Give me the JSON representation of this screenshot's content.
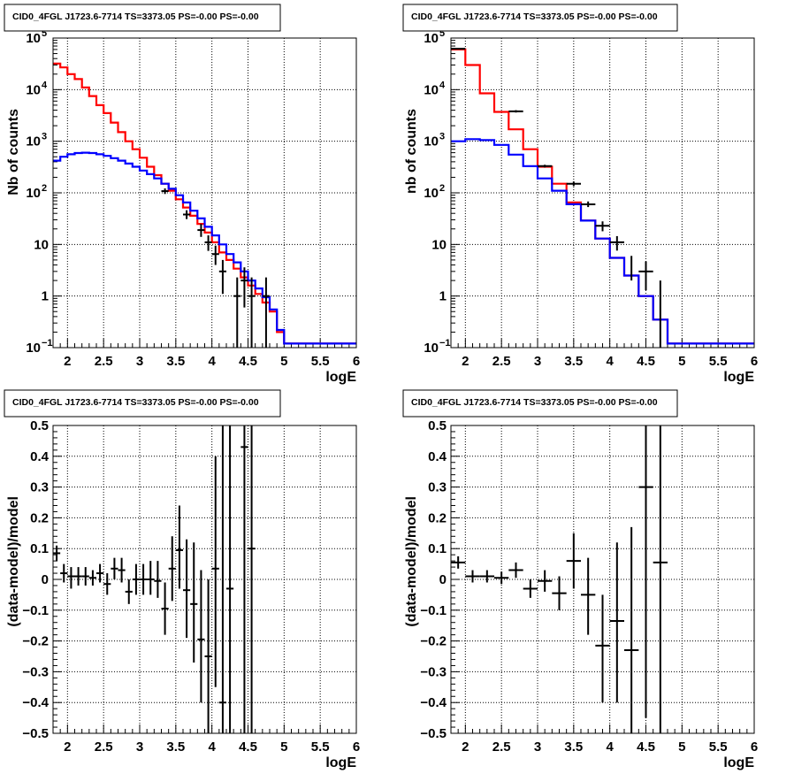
{
  "chart_data": [
    {
      "type": "line",
      "title": "CID0_4FGL J1723.6-7714 TS=3373.05 PS=-0.00 PS=-0.00",
      "xlabel": "logE",
      "ylabel": "Nb of counts",
      "xlim": [
        1.8,
        6.0
      ],
      "ylim": [
        0.1,
        100000
      ],
      "yscale": "log",
      "grid": true,
      "x_ticks": [
        2,
        2.5,
        3,
        3.5,
        4,
        4.5,
        5,
        5.5,
        6
      ],
      "x_tick_labels": [
        "2",
        "2.5",
        "3",
        "3.5",
        "4",
        "4.5",
        "5",
        "5.5",
        "6"
      ],
      "y_ticks": [
        0.1,
        1,
        10,
        100,
        1000,
        10000,
        100000
      ],
      "y_tick_labels": [
        {
          "base": "10",
          "exp": "−1"
        },
        {
          "base": "1",
          "exp": ""
        },
        {
          "base": "10",
          "exp": ""
        },
        {
          "base": "10",
          "exp": "2"
        },
        {
          "base": "10",
          "exp": "3"
        },
        {
          "base": "10",
          "exp": "4"
        },
        {
          "base": "10",
          "exp": "5"
        }
      ],
      "bin_edges": [
        1.8,
        1.9,
        2.0,
        2.1,
        2.2,
        2.3,
        2.4,
        2.5,
        2.6,
        2.7,
        2.8,
        2.9,
        3.0,
        3.1,
        3.2,
        3.3,
        3.4,
        3.5,
        3.6,
        3.7,
        3.8,
        3.9,
        4.0,
        4.1,
        4.2,
        4.3,
        4.4,
        4.5,
        4.6,
        4.7,
        4.8,
        4.9,
        5.0,
        5.1,
        5.2,
        5.3,
        5.4,
        5.5,
        5.6,
        5.7,
        5.8,
        5.9,
        6.0
      ],
      "series": [
        {
          "color": "#ff0000",
          "values": [
            32000,
            27000,
            20000,
            16000,
            11000,
            7500,
            5000,
            3500,
            2300,
            1500,
            1000,
            700,
            480,
            320,
            220,
            150,
            110,
            75,
            52,
            36,
            25,
            17,
            11,
            7,
            5,
            3.4,
            2.3,
            1.6,
            1.1,
            0.75,
            0.5,
            0.2,
            0.12,
            0.12,
            0.12,
            0.12,
            0.12,
            0.12,
            0.12,
            0.12,
            0.12,
            0.12
          ]
        },
        {
          "color": "#0000ff",
          "values": [
            420,
            500,
            560,
            590,
            600,
            590,
            560,
            520,
            470,
            420,
            370,
            320,
            270,
            230,
            190,
            150,
            120,
            90,
            65,
            45,
            32,
            22,
            15,
            10,
            6.5,
            4.5,
            3,
            2,
            1.4,
            0.95,
            0.55,
            0.22,
            0.12,
            0.12,
            0.12,
            0.12,
            0.12,
            0.12,
            0.12,
            0.12,
            0.12,
            0.12
          ]
        }
      ],
      "data_points": [
        {
          "x": 3.35,
          "y": 108,
          "ylo": 95,
          "yhi": 122,
          "xerr": 0.05
        },
        {
          "x": 3.65,
          "y": 38,
          "ylo": 31,
          "yhi": 46,
          "xerr": 0.05
        },
        {
          "x": 3.85,
          "y": 19,
          "ylo": 14,
          "yhi": 25,
          "xerr": 0.05
        },
        {
          "x": 3.95,
          "y": 11,
          "ylo": 7.5,
          "yhi": 15,
          "xerr": 0.05
        },
        {
          "x": 4.05,
          "y": 6.5,
          "ylo": 4,
          "yhi": 9.5,
          "xerr": 0.05
        },
        {
          "x": 4.15,
          "y": 3,
          "ylo": 1.1,
          "yhi": 5,
          "xerr": 0.05
        },
        {
          "x": 4.35,
          "y": 1,
          "ylo": 0.1,
          "yhi": 2.3,
          "xerr": 0.05
        },
        {
          "x": 4.45,
          "y": 2,
          "ylo": 0.6,
          "yhi": 3.6,
          "xerr": 0.05
        },
        {
          "x": 4.55,
          "y": 1,
          "ylo": 0.1,
          "yhi": 2.3,
          "xerr": 0.05
        },
        {
          "x": 4.75,
          "y": 1,
          "ylo": 0.1,
          "yhi": 2.3,
          "xerr": 0.05
        }
      ]
    },
    {
      "type": "line",
      "title": "CID0_4FGL J1723.6-7714 TS=3373.05 PS=-0.00 PS=-0.00",
      "xlabel": "logE",
      "ylabel": "nb of counts",
      "xlim": [
        1.8,
        6.0
      ],
      "ylim": [
        0.1,
        100000
      ],
      "yscale": "log",
      "grid": true,
      "x_ticks": [
        2,
        2.5,
        3,
        3.5,
        4,
        4.5,
        5,
        5.5,
        6
      ],
      "x_tick_labels": [
        "2",
        "2.5",
        "3",
        "3.5",
        "4",
        "4.5",
        "5",
        "5.5",
        "6"
      ],
      "y_ticks": [
        0.1,
        1,
        10,
        100,
        1000,
        10000,
        100000
      ],
      "y_tick_labels": [
        {
          "base": "10",
          "exp": "−1"
        },
        {
          "base": "1",
          "exp": ""
        },
        {
          "base": "10",
          "exp": ""
        },
        {
          "base": "10",
          "exp": "2"
        },
        {
          "base": "10",
          "exp": "3"
        },
        {
          "base": "10",
          "exp": "4"
        },
        {
          "base": "10",
          "exp": "5"
        }
      ],
      "bin_edges": [
        1.8,
        2.0,
        2.2,
        2.4,
        2.6,
        2.8,
        3.0,
        3.2,
        3.4,
        3.6,
        3.8,
        4.0,
        4.2,
        4.4,
        4.6,
        4.8,
        5.0,
        5.2,
        5.4,
        5.6,
        5.8,
        6.0
      ],
      "series": [
        {
          "color": "#ff0000",
          "values": [
            60000,
            30000,
            8500,
            3700,
            1700,
            700,
            320,
            150,
            65,
            29,
            13,
            5.5,
            2.5,
            1,
            0.35,
            0.12,
            0.12,
            0.12,
            0.12,
            0.12,
            0.12
          ]
        },
        {
          "color": "#0000ff",
          "values": [
            1000,
            1100,
            1050,
            850,
            550,
            330,
            190,
            110,
            60,
            29,
            13,
            5.5,
            2.5,
            1,
            0.35,
            0.12,
            0.12,
            0.12,
            0.12,
            0.12,
            0.12
          ]
        }
      ],
      "data_points": [
        {
          "x": 1.9,
          "y": 62000,
          "ylo": 61000,
          "yhi": 63000,
          "xerr": 0.1
        },
        {
          "x": 2.7,
          "y": 3800,
          "ylo": 3600,
          "yhi": 4000,
          "xerr": 0.1
        },
        {
          "x": 3.1,
          "y": 330,
          "ylo": 310,
          "yhi": 350,
          "xerr": 0.1
        },
        {
          "x": 3.5,
          "y": 150,
          "ylo": 135,
          "yhi": 165,
          "xerr": 0.1
        },
        {
          "x": 3.7,
          "y": 60,
          "ylo": 53,
          "yhi": 68,
          "xerr": 0.1
        },
        {
          "x": 3.9,
          "y": 23,
          "ylo": 18,
          "yhi": 28,
          "xerr": 0.1
        },
        {
          "x": 4.1,
          "y": 11,
          "ylo": 7.6,
          "yhi": 14.5,
          "xerr": 0.1
        },
        {
          "x": 4.3,
          "y": 4,
          "ylo": 2,
          "yhi": 6
        },
        {
          "x": 4.5,
          "y": 3,
          "ylo": 1.3,
          "yhi": 4.7,
          "xerr": 0.1
        },
        {
          "x": 4.7,
          "y": 1,
          "ylo": 0.1,
          "yhi": 2
        }
      ]
    },
    {
      "type": "scatter",
      "title": "CID0_4FGL J1723.6-7714 TS=3373.05 PS=-0.00 PS=-0.00",
      "xlabel": "logE",
      "ylabel": "(data-model)/model",
      "xlim": [
        1.8,
        6.0
      ],
      "ylim": [
        -0.5,
        0.5
      ],
      "grid": true,
      "x_ticks": [
        2,
        2.5,
        3,
        3.5,
        4,
        4.5,
        5,
        5.5,
        6
      ],
      "x_tick_labels": [
        "2",
        "2.5",
        "3",
        "3.5",
        "4",
        "4.5",
        "5",
        "5.5",
        "6"
      ],
      "y_ticks": [
        -0.5,
        -0.4,
        -0.3,
        -0.2,
        -0.1,
        0,
        0.1,
        0.2,
        0.3,
        0.4,
        0.5
      ],
      "y_tick_labels": [
        "−0.5",
        "−0.4",
        "−0.3",
        "−0.2",
        "−0.1",
        "0",
        "0.1",
        "0.2",
        "0.3",
        "0.4",
        "0.5"
      ],
      "data_points": [
        {
          "x": 1.85,
          "y": 0.085,
          "ylo": 0.06,
          "yhi": 0.11,
          "xerr": 0.05
        },
        {
          "x": 1.95,
          "y": 0.02,
          "ylo": -0.01,
          "yhi": 0.05,
          "xerr": 0.05
        },
        {
          "x": 2.05,
          "y": 0.01,
          "ylo": -0.03,
          "yhi": 0.04,
          "xerr": 0.05
        },
        {
          "x": 2.15,
          "y": 0.01,
          "ylo": -0.02,
          "yhi": 0.04,
          "xerr": 0.05
        },
        {
          "x": 2.25,
          "y": 0.01,
          "ylo": -0.02,
          "yhi": 0.04,
          "xerr": 0.05
        },
        {
          "x": 2.35,
          "y": 0.005,
          "ylo": -0.02,
          "yhi": 0.03,
          "xerr": 0.05
        },
        {
          "x": 2.45,
          "y": 0.02,
          "ylo": -0.01,
          "yhi": 0.05,
          "xerr": 0.05
        },
        {
          "x": 2.55,
          "y": -0.015,
          "ylo": -0.05,
          "yhi": 0.02,
          "xerr": 0.05
        },
        {
          "x": 2.65,
          "y": 0.035,
          "ylo": 0.0,
          "yhi": 0.07,
          "xerr": 0.05
        },
        {
          "x": 2.75,
          "y": 0.03,
          "ylo": -0.01,
          "yhi": 0.07,
          "xerr": 0.05
        },
        {
          "x": 2.85,
          "y": -0.04,
          "ylo": -0.08,
          "yhi": 0.0,
          "xerr": 0.05
        },
        {
          "x": 2.95,
          "y": 0.0,
          "ylo": -0.05,
          "yhi": 0.05,
          "xerr": 0.05
        },
        {
          "x": 3.05,
          "y": 0.0,
          "ylo": -0.05,
          "yhi": 0.05,
          "xerr": 0.05
        },
        {
          "x": 3.15,
          "y": 0.0,
          "ylo": -0.05,
          "yhi": 0.06,
          "xerr": 0.05
        },
        {
          "x": 3.25,
          "y": -0.005,
          "ylo": -0.06,
          "yhi": 0.06,
          "xerr": 0.05
        },
        {
          "x": 3.35,
          "y": -0.095,
          "ylo": -0.18,
          "yhi": -0.01,
          "xerr": 0.05
        },
        {
          "x": 3.45,
          "y": 0.035,
          "ylo": -0.07,
          "yhi": 0.14,
          "xerr": 0.05
        },
        {
          "x": 3.55,
          "y": 0.095,
          "ylo": -0.03,
          "yhi": 0.24,
          "xerr": 0.05
        },
        {
          "x": 3.65,
          "y": -0.035,
          "ylo": -0.19,
          "yhi": 0.13,
          "xerr": 0.05
        },
        {
          "x": 3.75,
          "y": -0.08,
          "ylo": -0.27,
          "yhi": 0.12,
          "xerr": 0.05
        },
        {
          "x": 3.85,
          "y": -0.195,
          "ylo": -0.4,
          "yhi": 0.03,
          "xerr": 0.05
        },
        {
          "x": 3.95,
          "y": -0.25,
          "ylo": -0.5,
          "yhi": 0.0,
          "xerr": 0.05
        },
        {
          "x": 4.05,
          "y": 0.035,
          "ylo": -0.35,
          "yhi": 0.4,
          "xerr": 0.05
        },
        {
          "x": 4.15,
          "y": -0.4,
          "ylo": -0.5,
          "yhi": 0.5,
          "xerr": 0.05
        },
        {
          "x": 4.25,
          "y": -0.03,
          "ylo": -0.5,
          "yhi": 0.5,
          "xerr": 0.05
        },
        {
          "x": 4.45,
          "y": 0.43,
          "ylo": -0.5,
          "yhi": 0.5,
          "xerr": 0.05
        },
        {
          "x": 4.55,
          "y": 0.1,
          "ylo": -0.5,
          "yhi": 0.5,
          "xerr": 0.05
        }
      ]
    },
    {
      "type": "scatter",
      "title": "CID0_4FGL J1723.6-7714 TS=3373.05 PS=-0.00 PS=-0.00",
      "xlabel": "logE",
      "ylabel": "(data-model)/model",
      "xlim": [
        1.8,
        6.0
      ],
      "ylim": [
        -0.5,
        0.5
      ],
      "grid": true,
      "x_ticks": [
        2,
        2.5,
        3,
        3.5,
        4,
        4.5,
        5,
        5.5,
        6
      ],
      "x_tick_labels": [
        "2",
        "2.5",
        "3",
        "3.5",
        "4",
        "4.5",
        "5",
        "5.5",
        "6"
      ],
      "y_ticks": [
        -0.5,
        -0.4,
        -0.3,
        -0.2,
        -0.1,
        0,
        0.1,
        0.2,
        0.3,
        0.4,
        0.5
      ],
      "y_tick_labels": [
        "−0.5",
        "−0.4",
        "−0.3",
        "−0.2",
        "−0.1",
        "0",
        "0.1",
        "0.2",
        "0.3",
        "0.4",
        "0.5"
      ],
      "data_points": [
        {
          "x": 1.9,
          "y": 0.055,
          "ylo": 0.035,
          "yhi": 0.075,
          "xerr": 0.1
        },
        {
          "x": 2.1,
          "y": 0.01,
          "ylo": -0.01,
          "yhi": 0.03,
          "xerr": 0.1
        },
        {
          "x": 2.3,
          "y": 0.01,
          "ylo": -0.01,
          "yhi": 0.03,
          "xerr": 0.1
        },
        {
          "x": 2.5,
          "y": 0.005,
          "ylo": -0.015,
          "yhi": 0.025,
          "xerr": 0.1
        },
        {
          "x": 2.7,
          "y": 0.03,
          "ylo": 0.005,
          "yhi": 0.055,
          "xerr": 0.1
        },
        {
          "x": 2.9,
          "y": -0.03,
          "ylo": -0.06,
          "yhi": 0.0,
          "xerr": 0.1
        },
        {
          "x": 3.1,
          "y": -0.005,
          "ylo": -0.04,
          "yhi": 0.03,
          "xerr": 0.1
        },
        {
          "x": 3.3,
          "y": -0.045,
          "ylo": -0.1,
          "yhi": 0.01,
          "xerr": 0.1
        },
        {
          "x": 3.5,
          "y": 0.06,
          "ylo": -0.03,
          "yhi": 0.15,
          "xerr": 0.1
        },
        {
          "x": 3.7,
          "y": -0.05,
          "ylo": -0.18,
          "yhi": 0.07,
          "xerr": 0.1
        },
        {
          "x": 3.9,
          "y": -0.215,
          "ylo": -0.4,
          "yhi": -0.05,
          "xerr": 0.1
        },
        {
          "x": 4.1,
          "y": -0.135,
          "ylo": -0.4,
          "yhi": 0.12,
          "xerr": 0.1
        },
        {
          "x": 4.3,
          "y": -0.23,
          "ylo": -0.5,
          "yhi": 0.17,
          "xerr": 0.1
        },
        {
          "x": 4.5,
          "y": 0.3,
          "ylo": -0.45,
          "yhi": 0.5,
          "xerr": 0.1
        },
        {
          "x": 4.7,
          "y": 0.055,
          "ylo": -0.5,
          "yhi": 0.5,
          "xerr": 0.1
        }
      ]
    }
  ]
}
